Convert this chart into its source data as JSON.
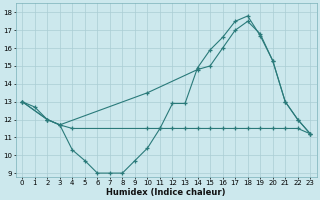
{
  "background_color": "#cce8ed",
  "grid_color": "#aacdd4",
  "line_color": "#2a7a7a",
  "xlabel": "Humidex (Indice chaleur)",
  "xlim": [
    -0.5,
    23.5
  ],
  "ylim": [
    8.8,
    18.5
  ],
  "yticks": [
    9,
    10,
    11,
    12,
    13,
    14,
    15,
    16,
    17,
    18
  ],
  "xticks": [
    0,
    1,
    2,
    3,
    4,
    5,
    6,
    7,
    8,
    9,
    10,
    11,
    12,
    13,
    14,
    15,
    16,
    17,
    18,
    19,
    20,
    21,
    22,
    23
  ],
  "line1_x": [
    0,
    1,
    2,
    3,
    4,
    5,
    6,
    7,
    8,
    9,
    10,
    11,
    12,
    13,
    14,
    15,
    16,
    17,
    18,
    19,
    20,
    21,
    22,
    23
  ],
  "line1_y": [
    13.0,
    12.7,
    12.0,
    11.7,
    10.3,
    9.7,
    9.0,
    9.0,
    9.0,
    9.7,
    10.4,
    11.5,
    12.9,
    12.9,
    14.9,
    15.9,
    16.6,
    17.5,
    17.8,
    16.7,
    15.3,
    13.0,
    12.0,
    11.2
  ],
  "line2_x": [
    0,
    2,
    3,
    4,
    10,
    11,
    12,
    13,
    14,
    15,
    16,
    17,
    18,
    19,
    20,
    21,
    22,
    23
  ],
  "line2_y": [
    13.0,
    12.0,
    11.7,
    11.5,
    11.5,
    11.5,
    11.5,
    11.5,
    11.5,
    11.5,
    11.5,
    11.5,
    11.5,
    11.5,
    11.5,
    11.5,
    11.5,
    11.2
  ],
  "line3_x": [
    0,
    2,
    3,
    10,
    14,
    15,
    16,
    17,
    18,
    19,
    20,
    21,
    22,
    23
  ],
  "line3_y": [
    13.0,
    12.0,
    11.7,
    13.5,
    14.8,
    15.0,
    16.0,
    17.0,
    17.5,
    16.8,
    15.3,
    13.0,
    12.0,
    11.2
  ]
}
